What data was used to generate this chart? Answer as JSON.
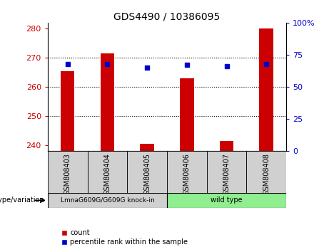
{
  "title": "GDS4490 / 10386095",
  "samples": [
    "GSM808403",
    "GSM808404",
    "GSM808405",
    "GSM808406",
    "GSM808407",
    "GSM808408"
  ],
  "count_values": [
    265.5,
    271.5,
    240.5,
    263.0,
    241.5,
    280.0
  ],
  "percentile_values": [
    68,
    68,
    65,
    67,
    66,
    68
  ],
  "ylim_left": [
    238,
    282
  ],
  "ylim_right": [
    0,
    100
  ],
  "yticks_left": [
    240,
    250,
    260,
    270,
    280
  ],
  "yticks_right": [
    0,
    25,
    50,
    75,
    100
  ],
  "group1_label": "LmnaG609G/G609G knock-in",
  "group2_label": "wild type",
  "group1_color": "#d0d0d0",
  "group2_color": "#90EE90",
  "sample_box_color": "#d0d0d0",
  "bar_color": "#cc0000",
  "dot_color": "#0000cc",
  "bar_width": 0.35,
  "genotype_label": "genotype/variation",
  "legend_count": "count",
  "legend_percentile": "percentile rank within the sample",
  "background_color": "#ffffff",
  "left_tick_color": "#cc0000",
  "right_tick_color": "#0000cc",
  "grid_dotted_ticks": [
    250,
    260,
    270
  ]
}
